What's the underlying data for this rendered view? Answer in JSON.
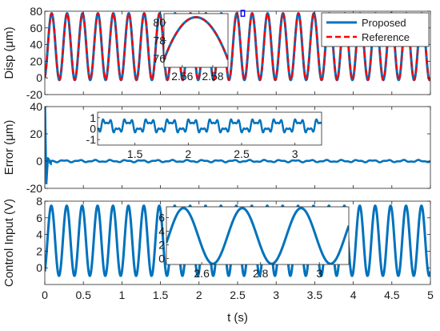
{
  "colors": {
    "proposed": "#0072BD",
    "reference": "#FF0000",
    "zoom_box": "#0000FF",
    "axis": "#262626"
  },
  "chart_data": [
    {
      "type": "line",
      "ylabel": "Disp (μm)",
      "xlim": [
        0,
        5
      ],
      "ylim": [
        -20,
        80
      ],
      "yticks": [
        -20,
        0,
        20,
        40,
        60,
        80
      ],
      "legend_position": "top-right",
      "signal": {
        "kind": "sine",
        "offset": 37.5,
        "amplitude": 40,
        "frequency_hz": 5
      },
      "series": [
        {
          "name": "Proposed",
          "style": "solid",
          "color": "#0072BD"
        },
        {
          "name": "Reference",
          "style": "dashed",
          "color": "#FF0000"
        }
      ],
      "inset": {
        "xlim": [
          2.548,
          2.59
        ],
        "ylim": [
          75,
          81
        ],
        "xticks": [
          2.56,
          2.58
        ],
        "xtick_labels": [
          "2.56",
          "2.58"
        ],
        "yticks": [
          76,
          78,
          80
        ],
        "peak_time": 2.55,
        "peak_value": 77.5
      },
      "zoom_window": {
        "x": [
          2.545,
          2.59
        ],
        "y": [
          74,
          81
        ]
      }
    },
    {
      "type": "line",
      "ylabel": "Error (μm)",
      "xlim": [
        0,
        5
      ],
      "ylim": [
        -20,
        40
      ],
      "yticks": [
        -20,
        0,
        20,
        40
      ],
      "series": [
        {
          "name": "Proposed",
          "color": "#0072BD"
        }
      ],
      "transient": {
        "peak": 40,
        "undershoot": -17,
        "settle_time": 0.08,
        "steady_amplitude": 1.2
      },
      "inset": {
        "xlim": [
          1.15,
          3.25
        ],
        "ylim": [
          -1.5,
          1.5
        ],
        "xticks": [
          1.5,
          2,
          2.5,
          3
        ],
        "xtick_labels": [
          "1.5",
          "2",
          "2.5",
          "3"
        ],
        "yticks": [
          -1,
          0,
          1
        ],
        "ytick_labels": [
          "-1",
          "0",
          "1"
        ],
        "steady_amplitude": 0.6
      }
    },
    {
      "type": "line",
      "ylabel": "Control Input (V)",
      "xlabel": "t (s)",
      "xlim": [
        0,
        5
      ],
      "ylim": [
        -2,
        8
      ],
      "yticks": [
        0,
        2,
        4,
        6,
        8
      ],
      "xticks": [
        0,
        0.5,
        1,
        1.5,
        2,
        2.5,
        3,
        3.5,
        4,
        4.5,
        5
      ],
      "signal": {
        "kind": "sine",
        "offset": 3.25,
        "amplitude": 4.2,
        "frequency_hz": 5
      },
      "series": [
        {
          "name": "Proposed",
          "color": "#0072BD"
        }
      ],
      "inset": {
        "xlim": [
          2.48,
          3.1
        ],
        "ylim": [
          -0.9,
          7.6
        ],
        "xticks": [
          2.6,
          2.8,
          3
        ],
        "xtick_labels": [
          "2.6",
          "2.8",
          "3"
        ],
        "yticks": [
          0,
          2,
          4,
          6
        ],
        "frequency_hz": 5
      }
    }
  ]
}
